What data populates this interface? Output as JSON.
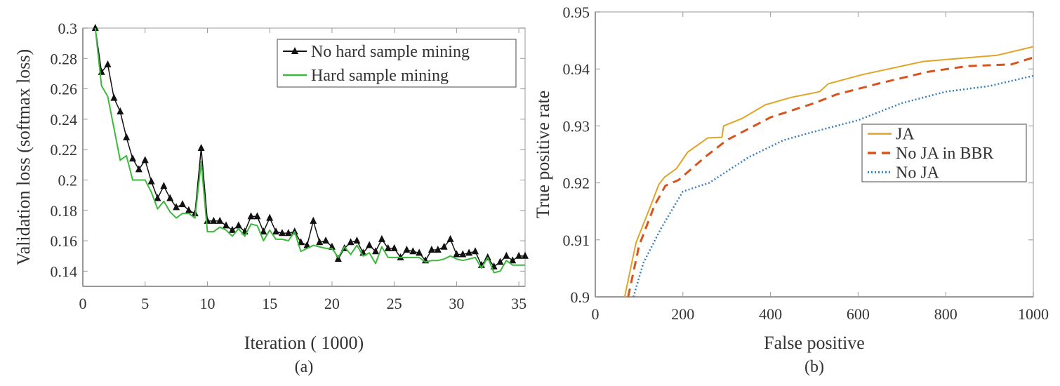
{
  "chart_data": [
    {
      "type": "line",
      "caption": "(a)",
      "xlabel": "Iteration (  1000)",
      "ylabel": "Validation loss (softmax loss)",
      "xlim": [
        0,
        35.5
      ],
      "ylim": [
        0.13,
        0.3
      ],
      "xticks": [
        0,
        5,
        10,
        15,
        20,
        25,
        30,
        35
      ],
      "xtick_labels": [
        "0",
        "5",
        "10",
        "15",
        "20",
        "25",
        "30",
        "35"
      ],
      "yticks": [
        0.14,
        0.16,
        0.18,
        0.2,
        0.22,
        0.24,
        0.26,
        0.28,
        0.3
      ],
      "ytick_labels": [
        "0.14",
        "0.16",
        "0.18",
        "0.2",
        "0.22",
        "0.24",
        "0.26",
        "0.28",
        "0.3"
      ],
      "grid": false,
      "legend_position": "top-right",
      "series": [
        {
          "name": "No hard sample mining",
          "color": "#111111",
          "style": "solid-triangle-markers",
          "x": [
            1.0,
            1.5,
            2.0,
            2.5,
            3.0,
            3.5,
            4.0,
            4.5,
            5.0,
            5.5,
            6.0,
            6.5,
            7.0,
            7.5,
            8.0,
            8.5,
            9.0,
            9.5,
            10.0,
            10.5,
            11.0,
            11.5,
            12.0,
            12.5,
            13.0,
            13.5,
            14.0,
            14.5,
            15.0,
            15.5,
            16.0,
            16.5,
            17.0,
            17.5,
            18.0,
            18.5,
            19.0,
            19.5,
            20.0,
            20.5,
            21.0,
            21.5,
            22.0,
            22.5,
            23.0,
            23.5,
            24.0,
            24.5,
            25.0,
            25.5,
            26.0,
            26.5,
            27.0,
            27.5,
            28.0,
            28.5,
            29.0,
            29.5,
            30.0,
            30.5,
            31.0,
            31.5,
            32.0,
            32.5,
            33.0,
            33.5,
            34.0,
            34.5,
            35.0,
            35.5
          ],
          "y": [
            0.3,
            0.271,
            0.276,
            0.254,
            0.245,
            0.228,
            0.214,
            0.207,
            0.213,
            0.199,
            0.188,
            0.196,
            0.188,
            0.182,
            0.184,
            0.18,
            0.178,
            0.221,
            0.173,
            0.173,
            0.173,
            0.17,
            0.167,
            0.17,
            0.166,
            0.176,
            0.176,
            0.166,
            0.175,
            0.166,
            0.165,
            0.165,
            0.166,
            0.159,
            0.157,
            0.173,
            0.159,
            0.16,
            0.156,
            0.148,
            0.155,
            0.159,
            0.16,
            0.152,
            0.157,
            0.153,
            0.161,
            0.155,
            0.155,
            0.149,
            0.154,
            0.153,
            0.152,
            0.147,
            0.154,
            0.154,
            0.156,
            0.161,
            0.151,
            0.151,
            0.152,
            0.153,
            0.144,
            0.149,
            0.143,
            0.146,
            0.15,
            0.147,
            0.15,
            0.15
          ]
        },
        {
          "name": "Hard sample mining",
          "color": "#3cb83c",
          "style": "solid",
          "x": [
            1.0,
            1.5,
            2.0,
            2.5,
            3.0,
            3.5,
            4.0,
            4.5,
            5.0,
            5.5,
            6.0,
            6.5,
            7.0,
            7.5,
            8.0,
            8.5,
            9.0,
            9.5,
            10.0,
            10.5,
            11.0,
            11.5,
            12.0,
            12.5,
            13.0,
            13.5,
            14.0,
            14.5,
            15.0,
            15.5,
            16.0,
            16.5,
            17.0,
            17.5,
            18.0,
            18.5,
            19.0,
            19.5,
            20.0,
            20.5,
            21.0,
            21.5,
            22.0,
            22.5,
            23.0,
            23.5,
            24.0,
            24.5,
            25.0,
            25.5,
            26.0,
            26.5,
            27.0,
            27.5,
            28.0,
            28.5,
            29.0,
            29.5,
            30.0,
            30.5,
            31.0,
            31.5,
            32.0,
            32.5,
            33.0,
            33.5,
            34.0,
            34.5,
            35.0,
            35.5
          ],
          "y": [
            0.3,
            0.262,
            0.255,
            0.234,
            0.213,
            0.216,
            0.2,
            0.2,
            0.2,
            0.192,
            0.181,
            0.186,
            0.179,
            0.175,
            0.178,
            0.178,
            0.175,
            0.212,
            0.166,
            0.166,
            0.169,
            0.167,
            0.163,
            0.168,
            0.163,
            0.171,
            0.17,
            0.16,
            0.167,
            0.161,
            0.161,
            0.16,
            0.166,
            0.153,
            0.155,
            0.157,
            0.156,
            0.155,
            0.155,
            0.149,
            0.156,
            0.151,
            0.157,
            0.15,
            0.152,
            0.145,
            0.156,
            0.149,
            0.149,
            0.149,
            0.149,
            0.149,
            0.149,
            0.146,
            0.147,
            0.147,
            0.148,
            0.15,
            0.148,
            0.147,
            0.148,
            0.149,
            0.142,
            0.149,
            0.139,
            0.14,
            0.147,
            0.144,
            0.144,
            0.144
          ]
        }
      ]
    },
    {
      "type": "line",
      "caption": "(b)",
      "xlabel": "False positive",
      "ylabel": "True positive rate",
      "xlim": [
        0,
        1000
      ],
      "ylim": [
        0.9,
        0.95
      ],
      "xticks": [
        0,
        200,
        400,
        600,
        800,
        1000
      ],
      "xtick_labels": [
        "0",
        "200",
        "400",
        "600",
        "800",
        "1000"
      ],
      "yticks": [
        0.9,
        0.91,
        0.92,
        0.93,
        0.94,
        0.95
      ],
      "ytick_labels": [
        "0.9",
        "0.91",
        "0.92",
        "0.93",
        "0.94",
        "0.95"
      ],
      "grid": false,
      "legend_position": "center-right",
      "series": [
        {
          "name": "JA",
          "color": "#e0a526",
          "style": "solid",
          "x": [
            67,
            93,
            128,
            145,
            158,
            185,
            211,
            257,
            289,
            293,
            335,
            388,
            447,
            512,
            532,
            610,
            748,
            918,
            1000
          ],
          "y": [
            0.9,
            0.9095,
            0.9163,
            0.9197,
            0.921,
            0.9225,
            0.9254,
            0.9279,
            0.928,
            0.93,
            0.9313,
            0.9337,
            0.935,
            0.936,
            0.9374,
            0.939,
            0.9413,
            0.9424,
            0.9439
          ]
        },
        {
          "name": "No JA in BBR",
          "color": "#d9531e",
          "style": "dashed",
          "x": [
            75,
            100,
            135,
            160,
            190,
            250,
            300,
            400,
            500,
            550,
            650,
            760,
            850,
            950,
            1000
          ],
          "y": [
            0.9,
            0.909,
            0.916,
            0.9195,
            0.9205,
            0.9245,
            0.9275,
            0.9315,
            0.934,
            0.9355,
            0.9375,
            0.9395,
            0.9405,
            0.9408,
            0.942
          ]
        },
        {
          "name": "No JA",
          "color": "#3a7fbf",
          "style": "dotted",
          "x": [
            87,
            110,
            150,
            200,
            260,
            350,
            430,
            500,
            600,
            700,
            800,
            900,
            1000
          ],
          "y": [
            0.9,
            0.906,
            0.912,
            0.9185,
            0.92,
            0.9245,
            0.9275,
            0.929,
            0.931,
            0.934,
            0.936,
            0.937,
            0.9388
          ]
        }
      ]
    }
  ]
}
